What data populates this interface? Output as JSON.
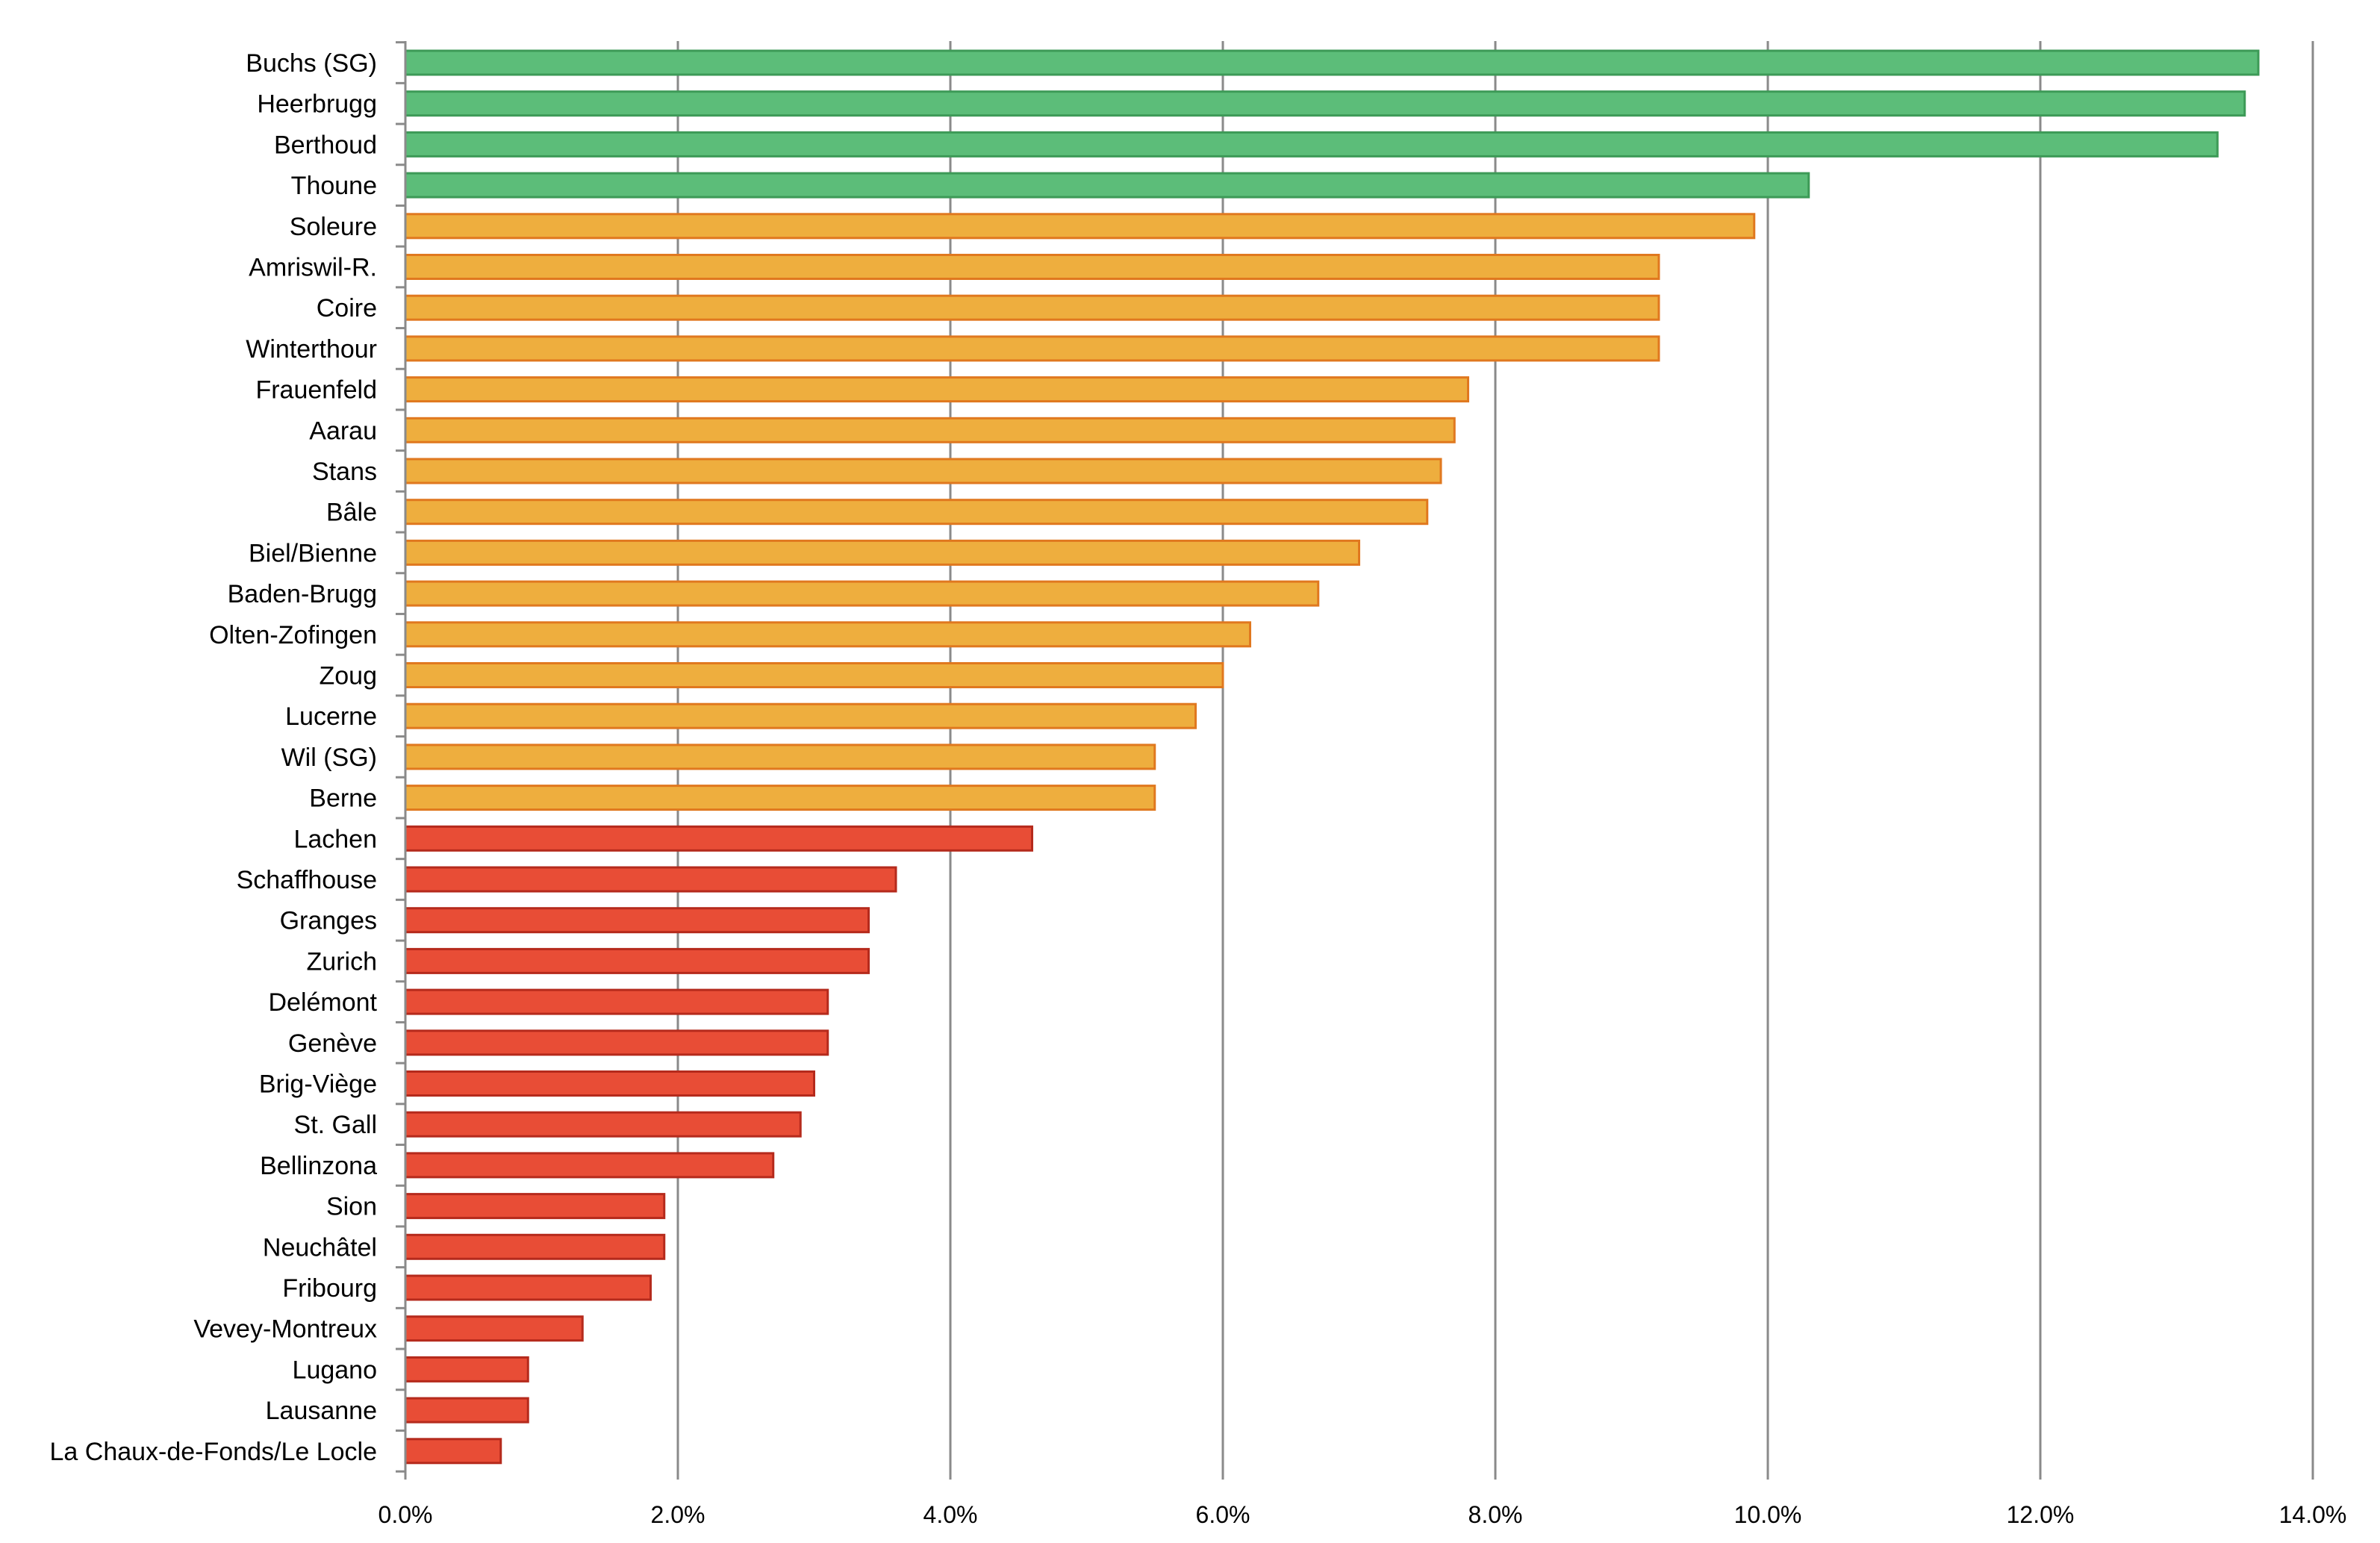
{
  "chart_data": {
    "type": "bar",
    "orientation": "horizontal",
    "title": "",
    "xlabel": "",
    "ylabel": "",
    "xlim": [
      0,
      14
    ],
    "x_ticks": [
      "0.0%",
      "2.0%",
      "4.0%",
      "6.0%",
      "8.0%",
      "10.0%",
      "12.0%",
      "14.0%"
    ],
    "grid": "vertical",
    "legend": "none",
    "colors": {
      "green": {
        "fill": "#5cbd79",
        "stroke": "#3d9a57"
      },
      "orange": {
        "fill": "#eeae3e",
        "stroke": "#e0781f"
      },
      "red": {
        "fill": "#e84d36",
        "stroke": "#b52a1c"
      }
    },
    "bars": [
      {
        "label": "Buchs (SG)",
        "value": 13.6,
        "color": "green"
      },
      {
        "label": "Heerbrugg",
        "value": 13.5,
        "color": "green"
      },
      {
        "label": "Berthoud",
        "value": 13.3,
        "color": "green"
      },
      {
        "label": "Thoune",
        "value": 10.3,
        "color": "green"
      },
      {
        "label": "Soleure",
        "value": 9.9,
        "color": "orange"
      },
      {
        "label": "Amriswil-R.",
        "value": 9.2,
        "color": "orange"
      },
      {
        "label": "Coire",
        "value": 9.2,
        "color": "orange"
      },
      {
        "label": "Winterthour",
        "value": 9.2,
        "color": "orange"
      },
      {
        "label": "Frauenfeld",
        "value": 7.8,
        "color": "orange"
      },
      {
        "label": "Aarau",
        "value": 7.7,
        "color": "orange"
      },
      {
        "label": "Stans",
        "value": 7.6,
        "color": "orange"
      },
      {
        "label": "Bâle",
        "value": 7.5,
        "color": "orange"
      },
      {
        "label": "Biel/Bienne",
        "value": 7.0,
        "color": "orange"
      },
      {
        "label": "Baden-Brugg",
        "value": 6.7,
        "color": "orange"
      },
      {
        "label": "Olten-Zofingen",
        "value": 6.2,
        "color": "orange"
      },
      {
        "label": "Zoug",
        "value": 6.0,
        "color": "orange"
      },
      {
        "label": "Lucerne",
        "value": 5.8,
        "color": "orange"
      },
      {
        "label": "Wil (SG)",
        "value": 5.5,
        "color": "orange"
      },
      {
        "label": "Berne",
        "value": 5.5,
        "color": "orange"
      },
      {
        "label": "Lachen",
        "value": 4.6,
        "color": "red"
      },
      {
        "label": "Schaffhouse",
        "value": 3.6,
        "color": "red"
      },
      {
        "label": "Granges",
        "value": 3.4,
        "color": "red"
      },
      {
        "label": "Zurich",
        "value": 3.4,
        "color": "red"
      },
      {
        "label": "Delémont",
        "value": 3.1,
        "color": "red"
      },
      {
        "label": "Genève",
        "value": 3.1,
        "color": "red"
      },
      {
        "label": "Brig-Viège",
        "value": 3.0,
        "color": "red"
      },
      {
        "label": "St. Gall",
        "value": 2.9,
        "color": "red"
      },
      {
        "label": "Bellinzona",
        "value": 2.7,
        "color": "red"
      },
      {
        "label": "Sion",
        "value": 1.9,
        "color": "red"
      },
      {
        "label": "Neuchâtel",
        "value": 1.9,
        "color": "red"
      },
      {
        "label": "Fribourg",
        "value": 1.8,
        "color": "red"
      },
      {
        "label": "Vevey-Montreux",
        "value": 1.3,
        "color": "red"
      },
      {
        "label": "Lugano",
        "value": 0.9,
        "color": "red"
      },
      {
        "label": "Lausanne",
        "value": 0.9,
        "color": "red"
      },
      {
        "label": "La Chaux-de-Fonds/Le Locle",
        "value": 0.7,
        "color": "red"
      }
    ]
  }
}
